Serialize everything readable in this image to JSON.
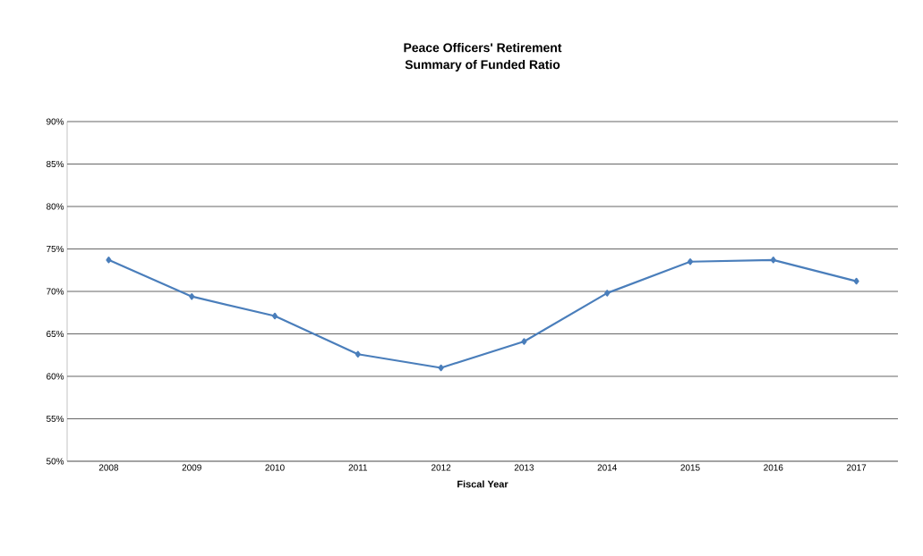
{
  "chart_data": {
    "type": "line",
    "title": "Peace Officers' Retirement\nSummary of Funded Ratio",
    "xlabel": "Fiscal Year",
    "categories": [
      "2008",
      "2009",
      "2010",
      "2011",
      "2012",
      "2013",
      "2014",
      "2015",
      "2016",
      "2017"
    ],
    "series": [
      {
        "color": "#4a7ebb",
        "values": [
          73.7,
          69.4,
          67.1,
          62.6,
          61.0,
          64.1,
          69.8,
          73.5,
          73.7,
          71.2
        ]
      }
    ],
    "ylim": [
      50,
      90
    ],
    "yticks": [
      {
        "value": 50,
        "label": "50%"
      },
      {
        "value": 55,
        "label": "55%"
      },
      {
        "value": 60,
        "label": "60%"
      },
      {
        "value": 65,
        "label": "65%"
      },
      {
        "value": 70,
        "label": "70%"
      },
      {
        "value": 75,
        "label": "75%"
      },
      {
        "value": 80,
        "label": "80%"
      },
      {
        "value": 85,
        "label": "85%"
      },
      {
        "value": 90,
        "label": "90%"
      }
    ],
    "grid": "y",
    "marker": "diamond",
    "line_style": "solid"
  }
}
